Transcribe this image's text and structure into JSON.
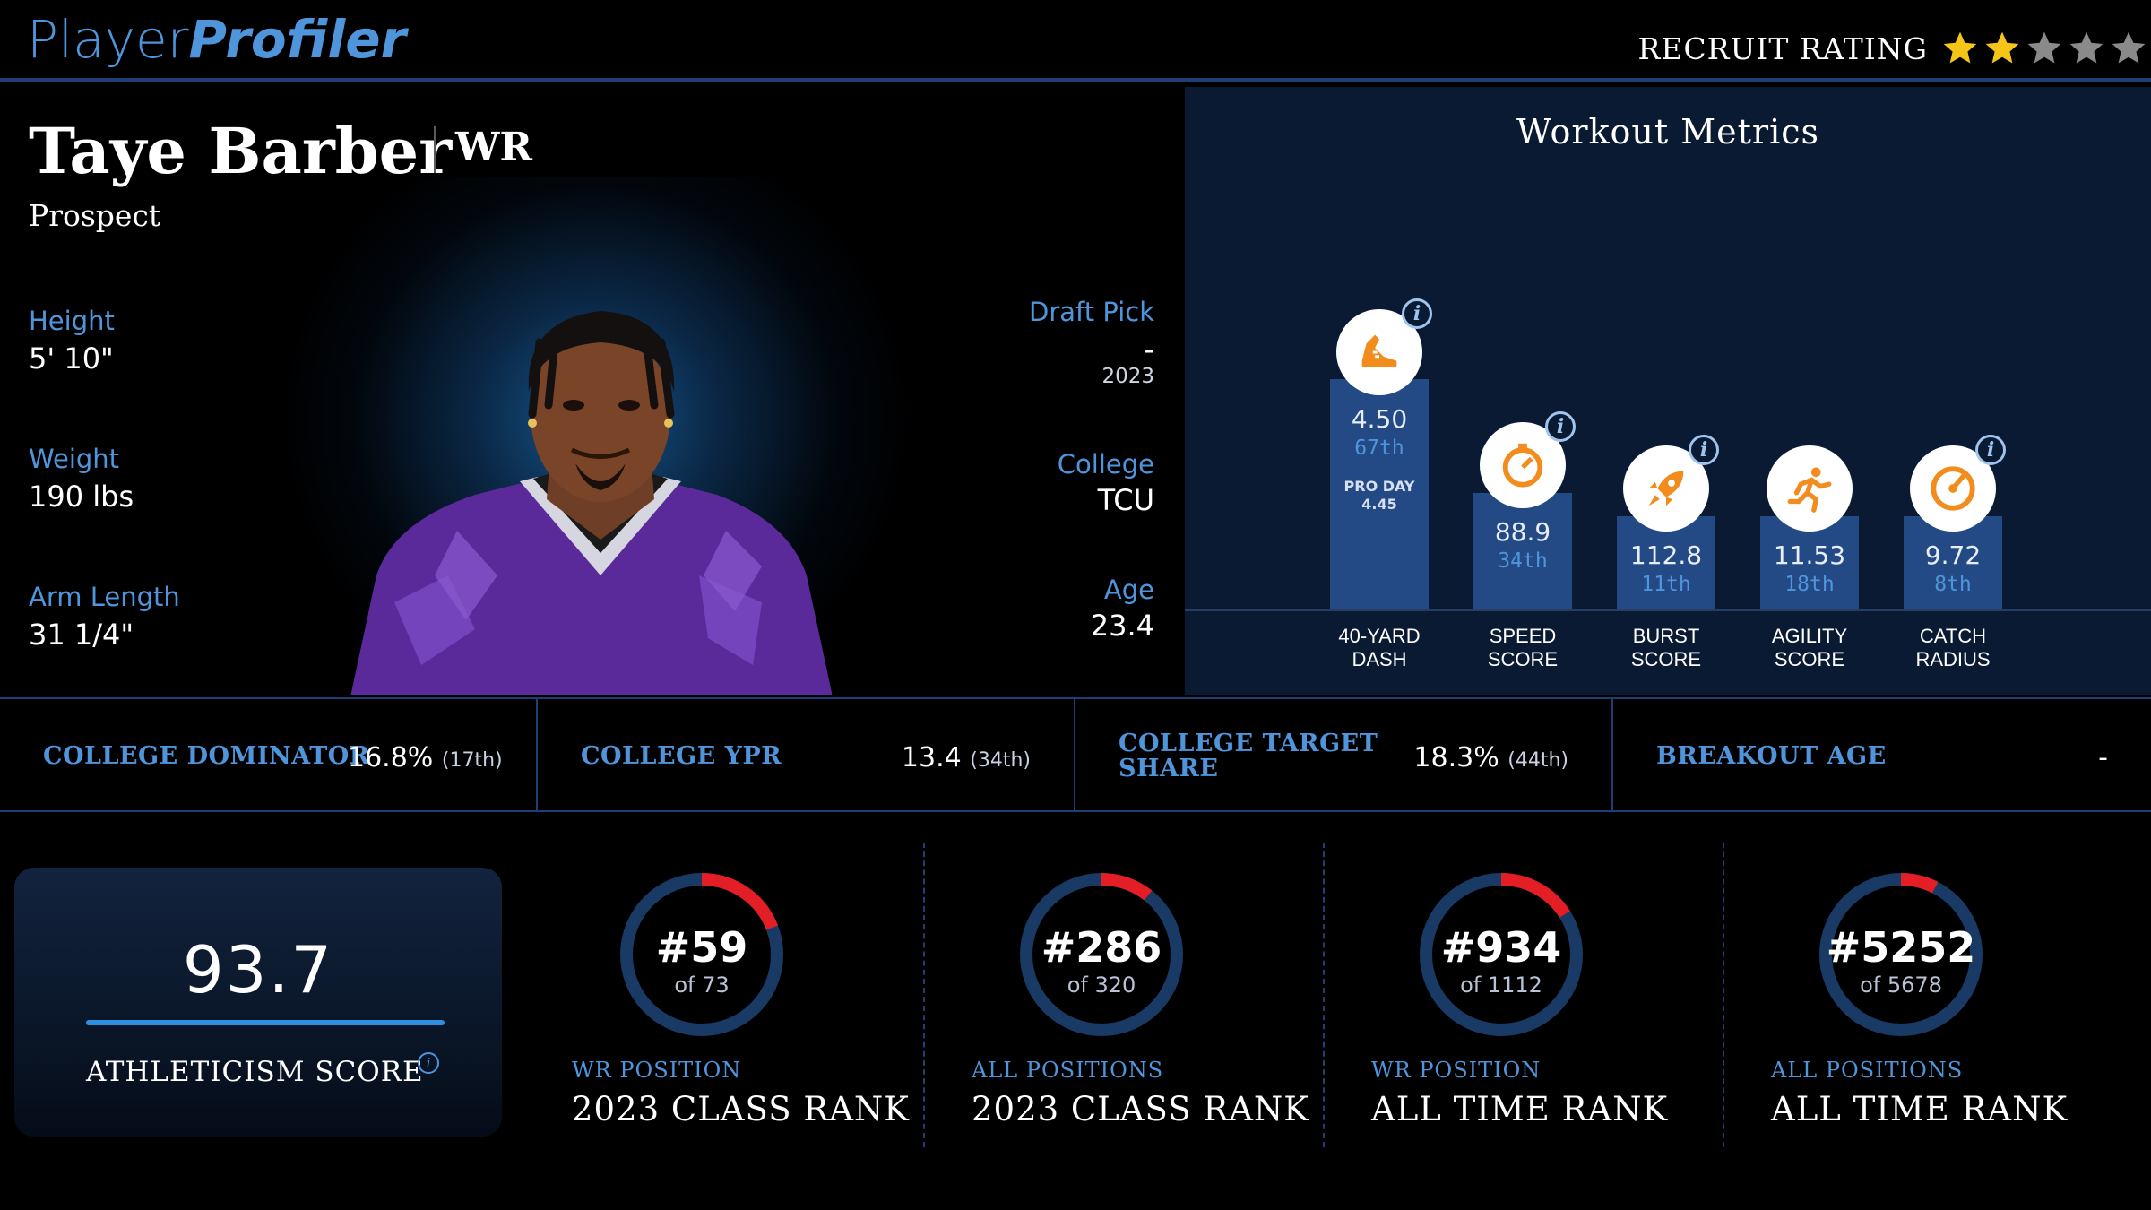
{
  "header": {
    "logo_part1": "Player",
    "logo_part2": "Profiler",
    "recruit_label": "RECRUIT RATING",
    "recruit_stars": 2,
    "recruit_stars_max": 5
  },
  "player": {
    "name": "Taye Barber",
    "position": "WR",
    "status": "Prospect",
    "height_label": "Height",
    "height": "5' 10\"",
    "weight_label": "Weight",
    "weight": "190 lbs",
    "arm_label": "Arm Length",
    "arm": "31 1/4\"",
    "draft_label": "Draft Pick",
    "draft_pick": "-",
    "draft_year": "2023",
    "college_label": "College",
    "college": "TCU",
    "age_label": "Age",
    "age": "23.4"
  },
  "workout": {
    "title": "Workout Metrics",
    "metrics": [
      {
        "label_line1": "40-YARD",
        "label_line2": "DASH",
        "value": "4.50",
        "percentile": "67th",
        "extra_label": "PRO DAY",
        "extra_value": "4.45",
        "icon": "running-shoe-icon",
        "percentile_num": 67
      },
      {
        "label_line1": "SPEED",
        "label_line2": "SCORE",
        "value": "88.9",
        "percentile": "34th",
        "icon": "stopwatch-icon",
        "percentile_num": 34
      },
      {
        "label_line1": "BURST",
        "label_line2": "SCORE",
        "value": "112.8",
        "percentile": "11th",
        "icon": "rocket-icon",
        "percentile_num": 11
      },
      {
        "label_line1": "AGILITY",
        "label_line2": "SCORE",
        "value": "11.53",
        "percentile": "18th",
        "icon": "sprinter-icon",
        "percentile_num": 18
      },
      {
        "label_line1": "CATCH",
        "label_line2": "RADIUS",
        "value": "9.72",
        "percentile": "8th",
        "icon": "target-dial-icon",
        "percentile_num": 8
      }
    ]
  },
  "college_stats": [
    {
      "label": "COLLEGE DOMINATOR",
      "value": "16.8%",
      "rank": "(17th)"
    },
    {
      "label": "COLLEGE YPR",
      "value": "13.4",
      "rank": "(34th)"
    },
    {
      "label_line1": "COLLEGE TARGET",
      "label_line2": "SHARE",
      "value": "18.3%",
      "rank": "(44th)"
    },
    {
      "label": "BREAKOUT AGE",
      "value": "-"
    }
  ],
  "athleticism": {
    "score": "93.7",
    "label": "ATHLETICISM SCORE"
  },
  "ranks": [
    {
      "rank": "#59",
      "of": "of 73",
      "rank_value": 59,
      "total": 73,
      "sub": "WR POSITION",
      "main": "2023 CLASS RANK"
    },
    {
      "rank": "#286",
      "of": "of 320",
      "rank_value": 286,
      "total": 320,
      "sub": "ALL POSITIONS",
      "main": "2023 CLASS RANK"
    },
    {
      "rank": "#934",
      "of": "of 1112",
      "rank_value": 934,
      "total": 1112,
      "sub": "WR POSITION",
      "main": "ALL TIME RANK"
    },
    {
      "rank": "#5252",
      "of": "of 5678",
      "rank_value": 5252,
      "total": 5678,
      "sub": "ALL POSITIONS",
      "main": "ALL TIME RANK"
    }
  ],
  "colors": {
    "accent_blue": "#4f95dc",
    "bar_blue": "#244a86",
    "ring_track": "#1a3a66",
    "ring_red": "#e31e24",
    "star_gold": "#f5c518",
    "star_gray": "#8a8a8a",
    "icon_orange": "#f28c1c"
  }
}
